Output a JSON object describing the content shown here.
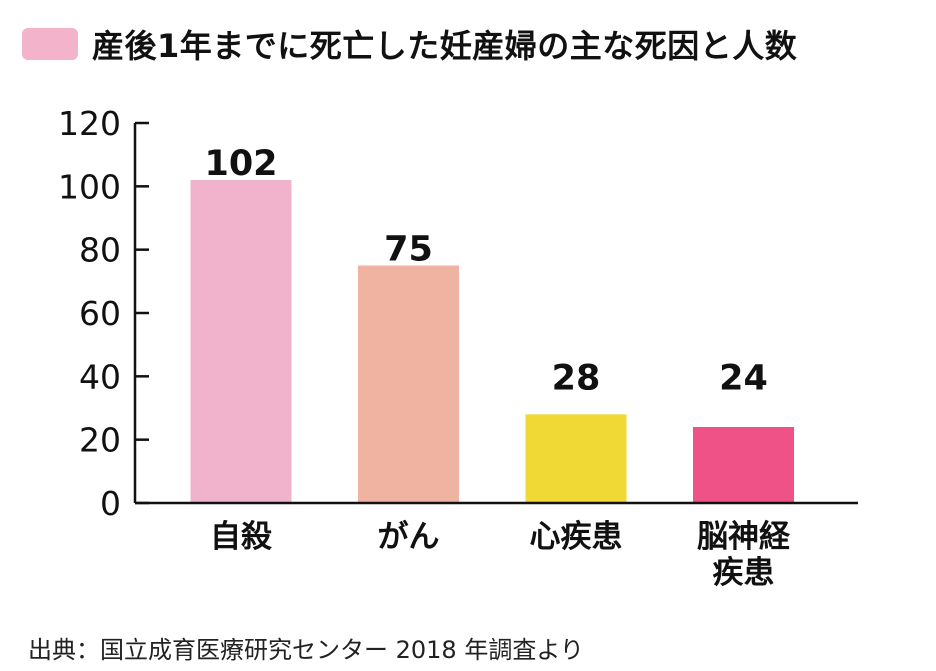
{
  "chart_data": {
    "type": "bar",
    "title": "",
    "xlabel": "",
    "ylabel": "",
    "ylim": [
      0,
      120
    ],
    "yticks": [
      0,
      20,
      40,
      60,
      80,
      100,
      120
    ],
    "grid": false,
    "legend_position": "top-left",
    "series": [
      {
        "name": "産後1年までに死亡した妊産婦の主な死因と人数",
        "color": "#f2b3cb",
        "values": [
          102,
          75,
          28,
          24
        ]
      }
    ],
    "categories": [
      {
        "lines": [
          "自殺"
        ],
        "value": 102,
        "color": "#f1b3cb"
      },
      {
        "lines": [
          "がん"
        ],
        "value": 75,
        "color": "#f1b3a1"
      },
      {
        "lines": [
          "心疾患"
        ],
        "value": 28,
        "color": "#f0d835"
      },
      {
        "lines": [
          "脳神経",
          "疾患"
        ],
        "value": 24,
        "color": "#ef5287"
      }
    ]
  },
  "source": "出典：国立成育医療研究センター 2018 年調査より"
}
